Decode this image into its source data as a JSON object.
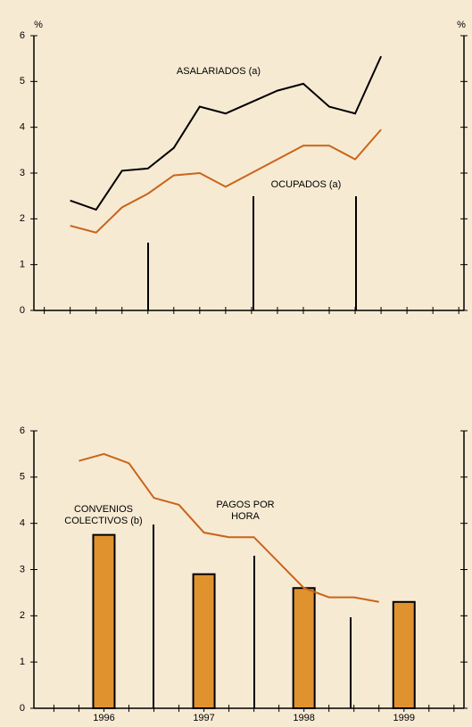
{
  "chart_data": [
    {
      "type": "line",
      "y_unit": "%",
      "x": [
        1996.25,
        1996.5,
        1996.75,
        1997,
        1997.25,
        1997.5,
        1997.75,
        1998,
        1998.25,
        1998.5,
        1998.75,
        1999,
        1999.25
      ],
      "series": [
        {
          "name": "ASALARIADOS (a)",
          "color": "#000000",
          "values": [
            2.4,
            2.2,
            3.05,
            3.1,
            3.55,
            4.45,
            4.3,
            4.55,
            4.8,
            4.95,
            4.45,
            4.3,
            5.55
          ]
        },
        {
          "name": "OCUPADOS (a)",
          "color": "#c8651b",
          "values": [
            1.85,
            1.7,
            2.25,
            2.55,
            2.95,
            3.0,
            2.7,
            3.0,
            3.3,
            3.6,
            3.6,
            3.3,
            3.95
          ]
        }
      ],
      "xlim": [
        1995.9,
        2000.05
      ],
      "xminorticks": [
        1996,
        1996.25,
        1996.5,
        1996.75,
        1997,
        1997.25,
        1997.5,
        1997.75,
        1998,
        1998.25,
        1998.5,
        1998.75,
        1999,
        1999.25,
        1999.5,
        1999.75,
        2000
      ],
      "ylim": [
        0,
        6
      ],
      "yticks": [
        0,
        1,
        2,
        3,
        4,
        5,
        6
      ]
    },
    {
      "type": "bar",
      "series": [
        {
          "name": "CONVENIOS COLECTIVOS (b)",
          "type": "bar",
          "color": "#e0922f",
          "x": [
            1996.5,
            1997.5,
            1998.5,
            1999.5
          ],
          "values": [
            3.75,
            2.9,
            2.6,
            2.3
          ]
        },
        {
          "name": "PAGOS POR HORA",
          "type": "line",
          "color": "#c8651b",
          "x": [
            1996.25,
            1996.5,
            1996.75,
            1997,
            1997.25,
            1997.5,
            1997.75,
            1998,
            1998.25,
            1998.5,
            1998.75,
            1999,
            1999.25
          ],
          "values": [
            5.35,
            5.5,
            5.3,
            4.55,
            4.4,
            3.8,
            3.7,
            3.7,
            3.15,
            2.6,
            2.4,
            2.4,
            2.3
          ]
        }
      ],
      "xlim": [
        1995.8,
        2000.1
      ],
      "xticks": [
        {
          "value": 1996.5,
          "label": "1996"
        },
        {
          "value": 1997.5,
          "label": "1997"
        },
        {
          "value": 1998.5,
          "label": "1998"
        },
        {
          "value": 1999.5,
          "label": "1999"
        }
      ],
      "xminorticks": [
        1996,
        1996.25,
        1996.5,
        1996.75,
        1997,
        1997.25,
        1997.5,
        1997.75,
        1998,
        1998.25,
        1998.5,
        1998.75,
        1999,
        1999.25,
        1999.5,
        1999.75,
        2000
      ],
      "ylim": [
        0,
        6
      ],
      "yticks": [
        0,
        1,
        2,
        3,
        4,
        5,
        6
      ]
    }
  ]
}
